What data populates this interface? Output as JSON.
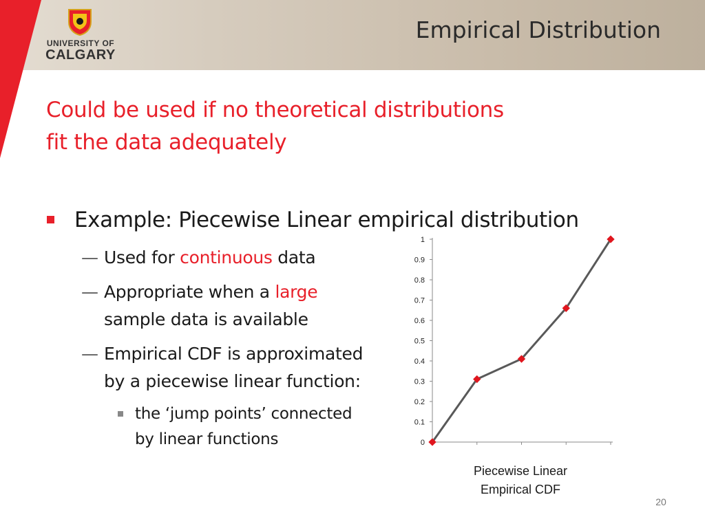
{
  "header": {
    "logo_line1": "UNIVERSITY OF",
    "logo_line2": "CALGARY",
    "title": "Empirical Distribution"
  },
  "headline": {
    "line1": "Could be used if no theoretical distributions",
    "line2": "fit the data adequately"
  },
  "bullet": {
    "text": "Example: Piecewise Linear empirical distribution",
    "items": [
      {
        "dash": "—",
        "pre": "Used for ",
        "highlight": "continuous",
        "post": " data"
      },
      {
        "dash": "—",
        "pre": "Appropriate when a ",
        "highlight": "large",
        "line2": "sample data is available"
      },
      {
        "dash": "—",
        "line1": "Empirical CDF is approximated",
        "line2": "by a piecewise linear function:"
      }
    ],
    "subitem": {
      "line1": "the ‘jump points’ connected",
      "line2": "by linear functions"
    }
  },
  "chart_data": {
    "type": "line",
    "x": [
      0,
      1,
      2,
      3,
      4
    ],
    "values": [
      0,
      0.31,
      0.41,
      0.66,
      1.0
    ],
    "ylim": [
      0,
      1
    ],
    "y_ticks": [
      "0",
      "0.1",
      "0.2",
      "0.3",
      "0.4",
      "0.5",
      "0.6",
      "0.7",
      "0.8",
      "0.9",
      "1"
    ],
    "caption_line1": "Piecewise Linear",
    "caption_line2": "Empirical CDF",
    "line_color": "#595959",
    "marker_color": "#e0161e"
  },
  "footer": {
    "page_number": "20"
  }
}
